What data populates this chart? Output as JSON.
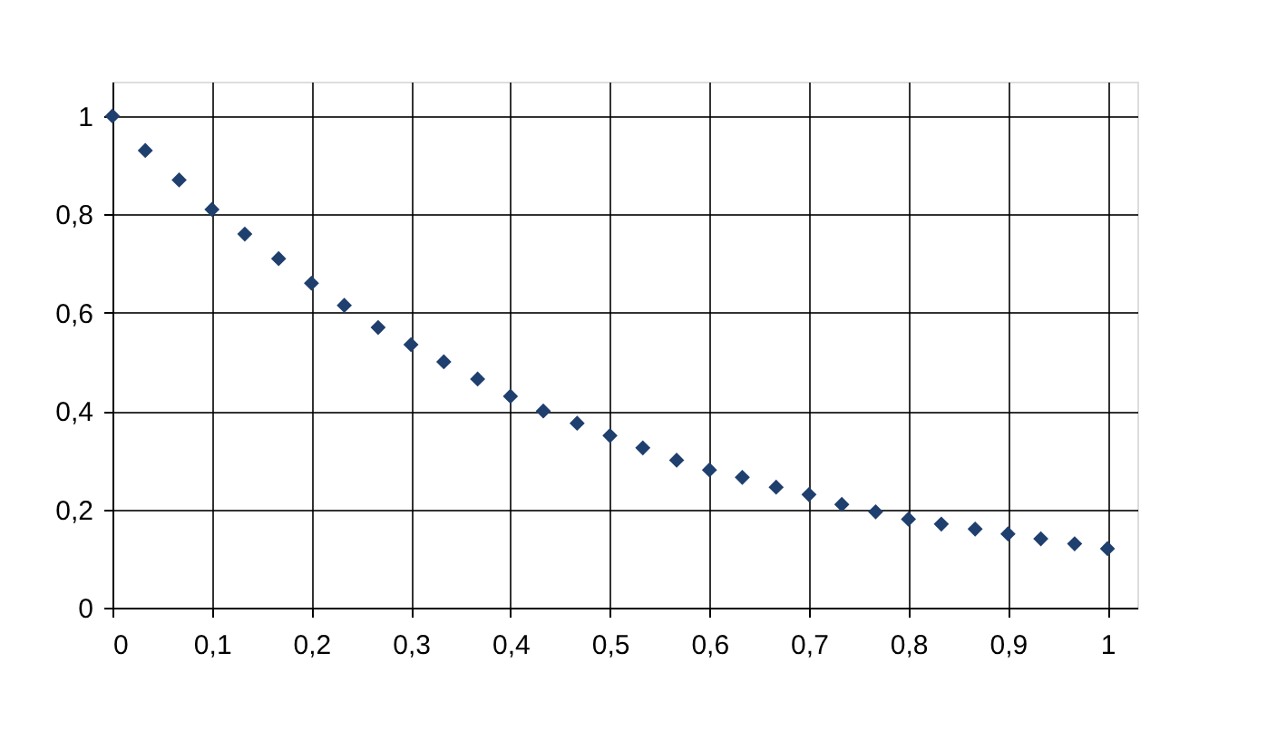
{
  "chart_data": {
    "type": "scatter",
    "x": [
      0,
      0.033,
      0.067,
      0.1,
      0.133,
      0.167,
      0.2,
      0.233,
      0.267,
      0.3,
      0.333,
      0.367,
      0.4,
      0.433,
      0.467,
      0.5,
      0.533,
      0.567,
      0.6,
      0.633,
      0.667,
      0.7,
      0.733,
      0.767,
      0.8,
      0.833,
      0.867,
      0.9,
      0.933,
      0.967,
      1
    ],
    "series": [
      {
        "color": "#1f3f6e",
        "values": [
          1.0,
          0.93,
          0.87,
          0.81,
          0.76,
          0.71,
          0.66,
          0.615,
          0.57,
          0.535,
          0.5,
          0.465,
          0.43,
          0.4,
          0.375,
          0.35,
          0.325,
          0.3,
          0.28,
          0.265,
          0.245,
          0.23,
          0.21,
          0.195,
          0.18,
          0.17,
          0.16,
          0.15,
          0.14,
          0.13,
          0.12
        ]
      }
    ],
    "xlim": [
      0,
      1.03
    ],
    "ylim": [
      0,
      1.07
    ],
    "xticks": [
      0,
      {
        "value": 0.1,
        "label": "0,1"
      },
      {
        "value": 0.2,
        "label": "0,2"
      },
      {
        "value": 0.3,
        "label": "0,3"
      },
      {
        "value": 0.4,
        "label": "0,4"
      },
      {
        "value": 0.5,
        "label": "0,5"
      },
      {
        "value": 0.6,
        "label": "0,6"
      },
      {
        "value": 0.7,
        "label": "0,7"
      },
      {
        "value": 0.8,
        "label": "0,8"
      },
      {
        "value": 0.9,
        "label": "0,9"
      },
      1
    ],
    "yticks": [
      0,
      {
        "value": 0.2,
        "label": "0,2"
      },
      {
        "value": 0.4,
        "label": "0,4"
      },
      {
        "value": 0.6,
        "label": "0,6"
      },
      {
        "value": 0.8,
        "label": "0,8"
      },
      1
    ],
    "grid": true,
    "marker": "diamond"
  }
}
